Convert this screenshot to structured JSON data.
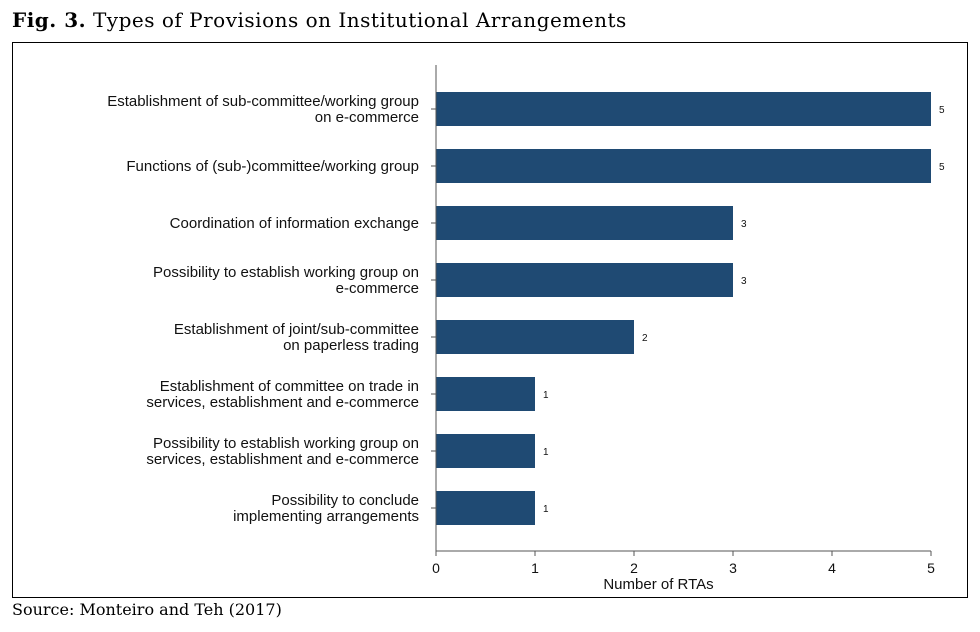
{
  "figure": {
    "number": "Fig. 3.",
    "title": "Types of Provisions on Institutional Arrangements",
    "source": "Source: Monteiro and Teh (2017)"
  },
  "colors": {
    "bar": "#1f4a73",
    "axis": "#555555"
  },
  "chart_data": {
    "type": "bar",
    "orientation": "horizontal",
    "categories": [
      [
        "Establishment of sub-committee/working group",
        "on e-commerce"
      ],
      [
        "Functions of (sub-)committee/working group"
      ],
      [
        "Coordination of information exchange"
      ],
      [
        "Possibility to establish working group on",
        "e-commerce"
      ],
      [
        "Establishment of joint/sub-committee",
        "on paperless trading"
      ],
      [
        "Establishment of committee on trade in",
        "services, establishment and e-commerce"
      ],
      [
        "Possibility to establish working group on",
        "services, establishment and e-commerce"
      ],
      [
        "Possibility to conclude",
        "implementing arrangements"
      ]
    ],
    "values": [
      5,
      5,
      3,
      3,
      2,
      1,
      1,
      1
    ],
    "value_labels": [
      "5",
      "5",
      "3",
      "3",
      "2",
      "1",
      "1",
      "1"
    ],
    "xlabel": "Number of RTAs",
    "xlim": [
      0,
      5
    ],
    "xticks": [
      "0",
      "1",
      "2",
      "3",
      "4",
      "5"
    ],
    "grid": false,
    "legend": "none"
  }
}
